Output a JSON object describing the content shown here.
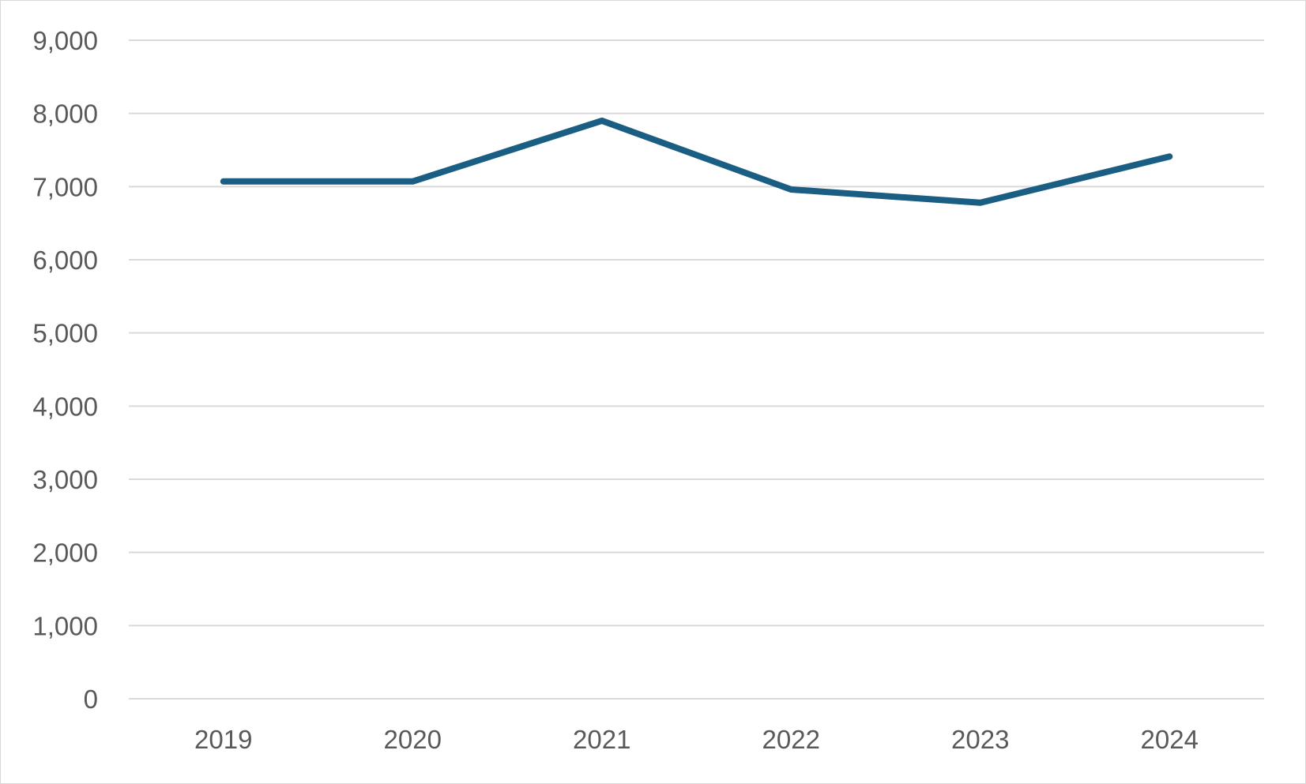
{
  "chart_data": {
    "type": "line",
    "title": "",
    "xlabel": "",
    "ylabel": "",
    "categories": [
      "2019",
      "2020",
      "2021",
      "2022",
      "2023",
      "2024"
    ],
    "series": [
      {
        "values": [
          7070,
          7070,
          7900,
          6960,
          6780,
          7410
        ],
        "color": "#1b5e83"
      }
    ],
    "ylim": [
      0,
      9000
    ],
    "yticks": [
      0,
      1000,
      2000,
      3000,
      4000,
      5000,
      6000,
      7000,
      8000,
      9000
    ],
    "ytick_labels": [
      "0",
      "1,000",
      "2,000",
      "3,000",
      "4,000",
      "5,000",
      "6,000",
      "7,000",
      "8,000",
      "9,000"
    ],
    "grid": "horizontal",
    "gridline_color": "#d9d9d9",
    "tick_label_color": "#595959",
    "legend": "none"
  }
}
